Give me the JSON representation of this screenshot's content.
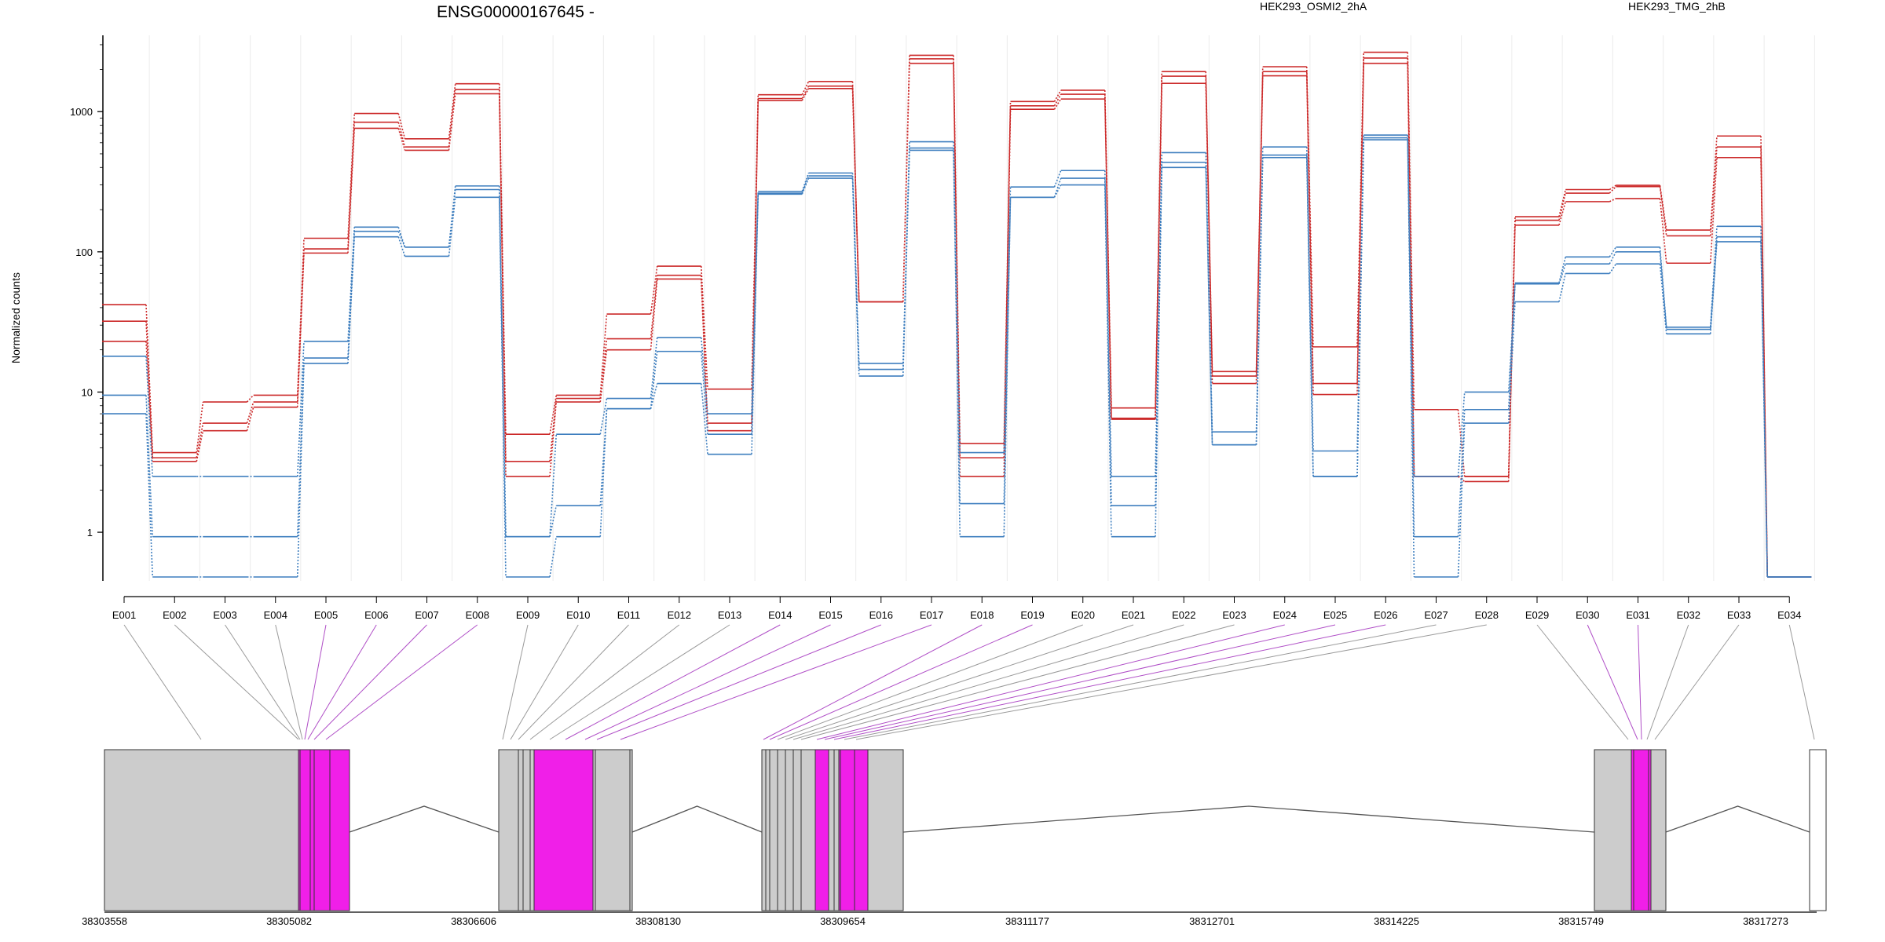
{
  "header": {
    "gene": "ENSG00000167645 -",
    "legend": [
      {
        "name": "HEK293_OSMI2_2hA",
        "color": "#cc2a2a"
      },
      {
        "name": "HEK293_TMG_2hB",
        "color": "#3f7fbf"
      }
    ]
  },
  "colors": {
    "red": "#cc2a2a",
    "blue": "#3f7fbf",
    "exon_gray": "#cccccc",
    "exon_significant": "#f01fe8",
    "link_gray": "#9a9a9a",
    "link_magenta": "#b04fc7"
  },
  "chart_data": {
    "type": "line",
    "title": "ENSG00000167645 -",
    "ylabel": "Normalized counts",
    "yscale": "log",
    "ylim": [
      0.45,
      3500
    ],
    "yticks": [
      1,
      10,
      100,
      1000
    ],
    "ytick_labels": [
      "1",
      "10",
      "100",
      "1000"
    ],
    "categories": [
      "E001",
      "E002",
      "E003",
      "E004",
      "E005",
      "E006",
      "E007",
      "E008",
      "E009",
      "E010",
      "E011",
      "E012",
      "E013",
      "E014",
      "E015",
      "E016",
      "E017",
      "E018",
      "E019",
      "E020",
      "E021",
      "E022",
      "E023",
      "E024",
      "E025",
      "E026",
      "E027",
      "E028",
      "E029",
      "E030",
      "E031",
      "E032",
      "E033",
      "E034"
    ],
    "series": [
      {
        "name": "HEK293_OSMI2_2hA",
        "group": "red",
        "values": [
          42,
          3.7,
          8.5,
          9.5,
          125,
          970,
          640,
          1580,
          5.0,
          9.5,
          36,
          79,
          10.5,
          1320,
          1640,
          44,
          2520,
          4.3,
          1180,
          1420,
          7.7,
          1930,
          14,
          2090,
          21,
          2650,
          7.5,
          2.5,
          178,
          278,
          298,
          143,
          670,
          0.48
        ]
      },
      {
        "name": "HEK293_OSMI2_2hA",
        "group": "red",
        "values": [
          32,
          3.4,
          6.0,
          8.5,
          105,
          840,
          560,
          1440,
          3.2,
          9.0,
          24,
          68,
          6.0,
          1240,
          1520,
          44,
          2380,
          3.4,
          1100,
          1330,
          6.5,
          1790,
          13,
          1930,
          11.5,
          2410,
          2.5,
          2.5,
          168,
          262,
          292,
          130,
          560,
          0.48
        ]
      },
      {
        "name": "HEK293_OSMI2_2hA",
        "group": "red",
        "values": [
          23,
          3.2,
          5.3,
          7.8,
          98,
          760,
          530,
          1340,
          2.5,
          8.5,
          20,
          64,
          5.3,
          1200,
          1460,
          44,
          2210,
          2.5,
          1040,
          1230,
          6.4,
          1590,
          11.5,
          1800,
          9.6,
          2210,
          2.5,
          2.3,
          155,
          228,
          240,
          83,
          470,
          0.48
        ]
      },
      {
        "name": "HEK293_TMG_2hB",
        "group": "blue",
        "values": [
          18,
          2.5,
          2.5,
          2.5,
          23,
          150,
          108,
          295,
          0.93,
          5.0,
          9.0,
          24.5,
          7.0,
          270,
          365,
          16,
          610,
          3.7,
          290,
          380,
          2.5,
          510,
          5.2,
          560,
          3.8,
          680,
          2.5,
          10,
          60,
          92,
          108,
          29,
          152,
          0.48
        ]
      },
      {
        "name": "HEK293_TMG_2hB",
        "group": "blue",
        "values": [
          9.5,
          0.93,
          0.93,
          0.93,
          17.5,
          140,
          108,
          278,
          0.93,
          1.55,
          7.6,
          19.5,
          5.0,
          262,
          348,
          14.5,
          550,
          1.6,
          245,
          335,
          1.55,
          435,
          4.2,
          490,
          2.5,
          650,
          0.93,
          7.5,
          59,
          82,
          100,
          28,
          128,
          0.48
        ]
      },
      {
        "name": "HEK293_TMG_2hB",
        "group": "blue",
        "values": [
          7.0,
          0.48,
          0.48,
          0.48,
          16,
          128,
          93,
          245,
          0.48,
          0.93,
          7.6,
          11.5,
          3.6,
          258,
          335,
          13,
          530,
          0.93,
          245,
          300,
          0.93,
          400,
          4.2,
          470,
          2.5,
          630,
          0.48,
          6.0,
          44,
          70,
          82,
          26,
          118,
          0.48
        ]
      }
    ],
    "gene_axis": {
      "tick_labels": [
        "38303558",
        "38305082",
        "38306606",
        "38308130",
        "38309654",
        "38311177",
        "38312701",
        "38314225",
        "38315749",
        "38317273"
      ]
    },
    "gene_model": {
      "blocks_start_coord": [
        38303558,
        38305060,
        38305120,
        38305150,
        38306710,
        38306830,
        38307070,
        38309070,
        38309180,
        38309360,
        38310850,
        38311940,
        38315780,
        38317220
      ],
      "significant_exons": [
        "E005",
        "E006",
        "E007",
        "E008",
        "E014",
        "E015",
        "E016",
        "E017",
        "E018",
        "E019",
        "E024",
        "E025",
        "E026",
        "E030",
        "E031"
      ]
    }
  }
}
